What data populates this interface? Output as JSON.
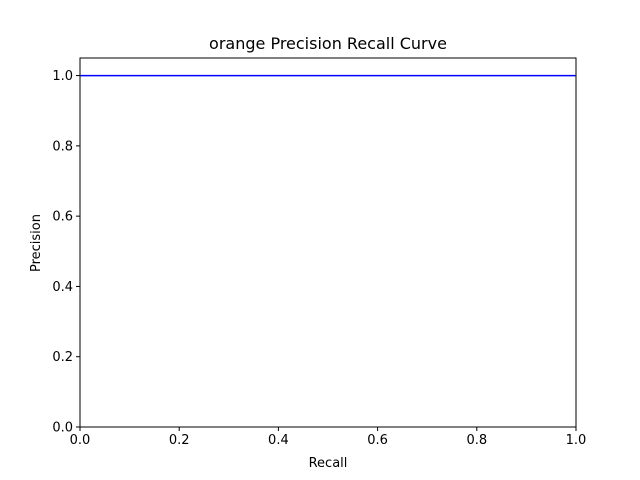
{
  "chart_data": {
    "type": "line",
    "title": "orange Precision Recall Curve",
    "xlabel": "Recall",
    "ylabel": "Precision",
    "xlim": [
      0.0,
      1.0
    ],
    "ylim": [
      0.0,
      1.05
    ],
    "xticks": [
      "0.0",
      "0.2",
      "0.4",
      "0.6",
      "0.8",
      "1.0"
    ],
    "yticks": [
      "0.0",
      "0.2",
      "0.4",
      "0.6",
      "0.8",
      "1.0"
    ],
    "grid": false,
    "series": [
      {
        "color": "#0000ff",
        "x": [
          0.0,
          1.0
        ],
        "y": [
          1.0,
          1.0
        ]
      }
    ]
  }
}
